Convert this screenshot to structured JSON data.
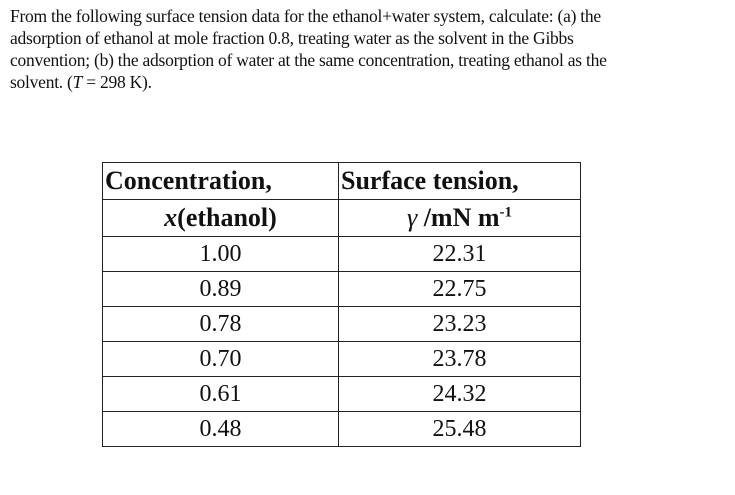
{
  "problem": {
    "lines": [
      "From the following surface tension data for the ethanol+water system, calculate:  (a) the",
      "adsorption of ethanol at mole fraction 0.8, treating water as the solvent in the Gibbs",
      "convention; (b) the adsorption of water at the same concentration, treating ethanol as the"
    ],
    "last_line_prefix": "solvent.  (",
    "last_line_var": "T",
    "last_line_suffix": " = 298 K)."
  },
  "table": {
    "header1": [
      "Concentration,",
      "Surface tension,"
    ],
    "col1_var": "x",
    "col1_unit": "(ethanol)",
    "col2_var": "γ",
    "col2_unit": " /mN m",
    "col2_exp": "-1",
    "rows": [
      [
        "1.00",
        "22.31"
      ],
      [
        "0.89",
        "22.75"
      ],
      [
        "0.78",
        "23.23"
      ],
      [
        "0.70",
        "23.78"
      ],
      [
        "0.61",
        "24.32"
      ],
      [
        "0.48",
        "25.48"
      ]
    ]
  }
}
